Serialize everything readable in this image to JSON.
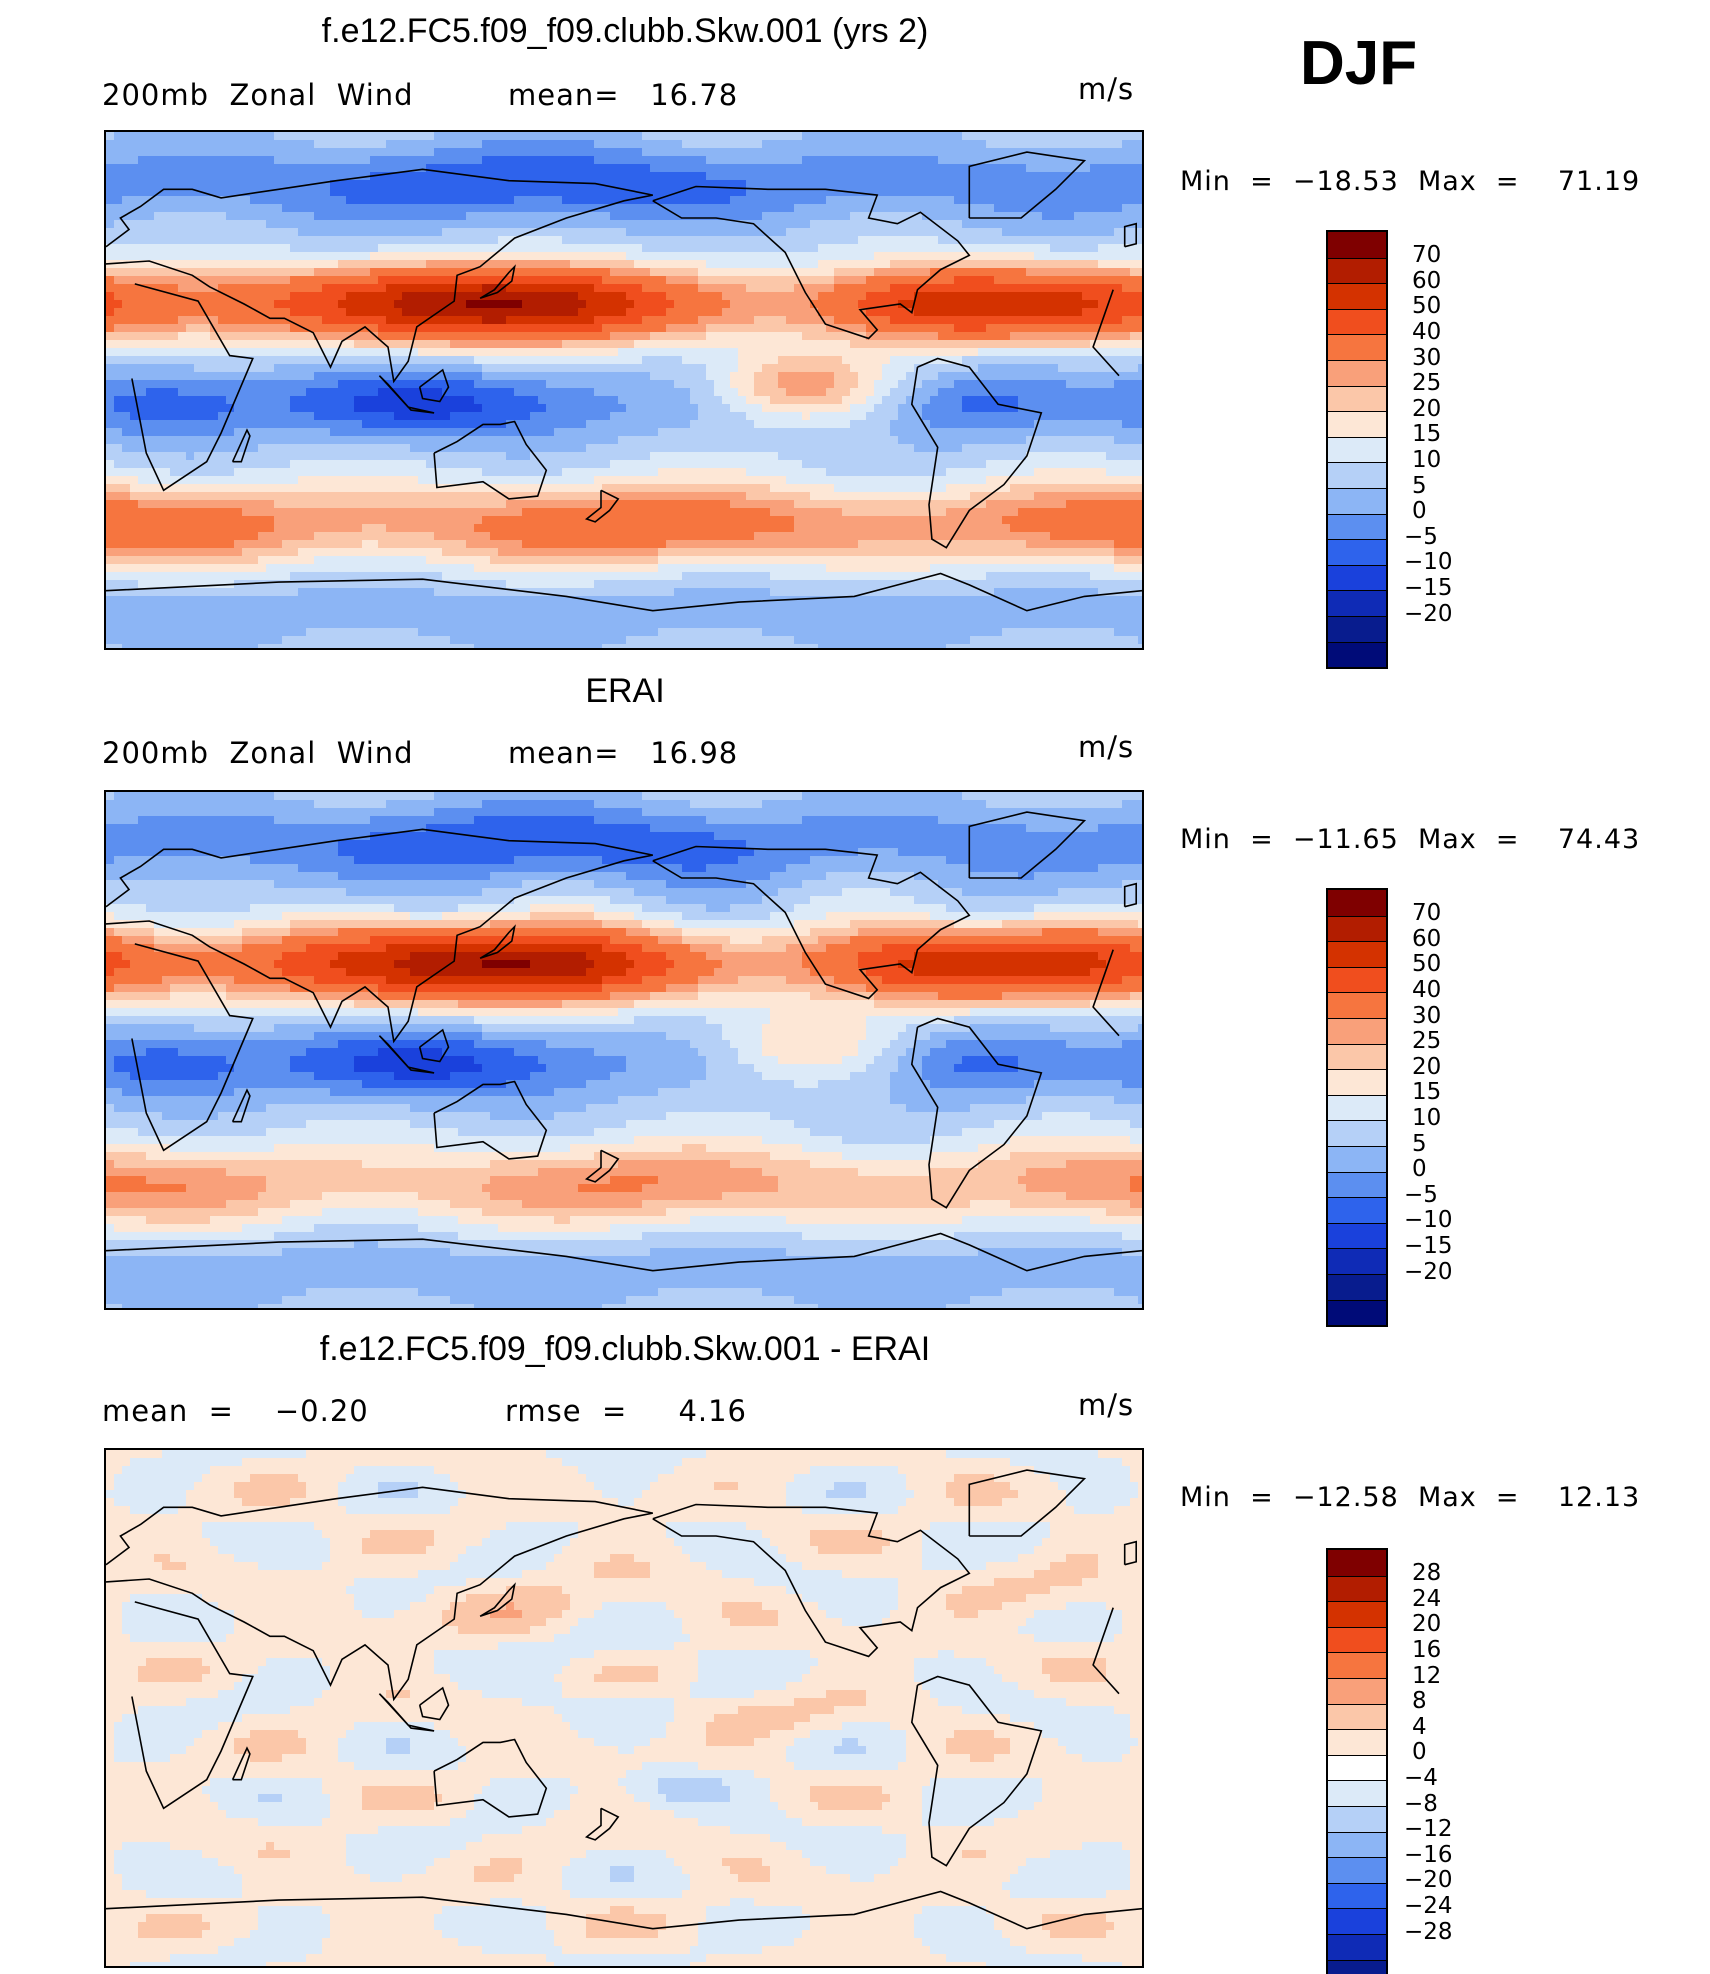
{
  "season": "DJF",
  "panels": [
    {
      "title": "f.e12.FC5.f09_f09.clubb.Skw.001 (yrs 2)",
      "left_label": "200mb  Zonal  Wind",
      "mid_label": "mean=   16.78",
      "units": "m/s",
      "minmax": "Min  =  −18.53  Max  =    71.19",
      "field_type": "model"
    },
    {
      "title": "ERAI",
      "left_label": "200mb  Zonal  Wind",
      "mid_label": "mean=   16.98",
      "units": "m/s",
      "minmax": "Min  =  −11.65  Max  =    74.43",
      "field_type": "obs"
    },
    {
      "title": "f.e12.FC5.f09_f09.clubb.Skw.001 - ERAI",
      "left_label": "mean  =    −0.20",
      "mid_label": "rmse  =     4.16",
      "units": "m/s",
      "minmax": "Min  =  −12.58  Max  =    12.13",
      "field_type": "diff"
    }
  ],
  "colorbars": {
    "wind": {
      "colors": [
        "#7f0000",
        "#b21d00",
        "#d43200",
        "#f04e1e",
        "#f6753f",
        "#f9a07a",
        "#fbc7a9",
        "#fde7d6",
        "#dceaf8",
        "#b5d0f7",
        "#8cb5f5",
        "#5c8ff0",
        "#2e63ec",
        "#1a41dc",
        "#0f2bb6",
        "#081c8e",
        "#000b78"
      ],
      "labels": [
        "70",
        "60",
        "50",
        "40",
        "30",
        "25",
        "20",
        "15",
        "10",
        "5",
        "0",
        "−5",
        "−10",
        "−15",
        "−20"
      ]
    },
    "diff": {
      "colors": [
        "#7f0000",
        "#b21d00",
        "#d43200",
        "#f04e1e",
        "#f6753f",
        "#f9a07a",
        "#fbc7a9",
        "#fde7d6",
        "#ffffff",
        "#dceaf8",
        "#b5d0f7",
        "#8cb5f5",
        "#5c8ff0",
        "#2e63ec",
        "#1a41dc",
        "#0f2bb6",
        "#081c8e",
        "#000b78"
      ],
      "labels": [
        "28",
        "24",
        "20",
        "16",
        "12",
        "8",
        "4",
        "0",
        "−4",
        "−8",
        "−12",
        "−16",
        "−20",
        "−24",
        "−28"
      ]
    }
  }
}
